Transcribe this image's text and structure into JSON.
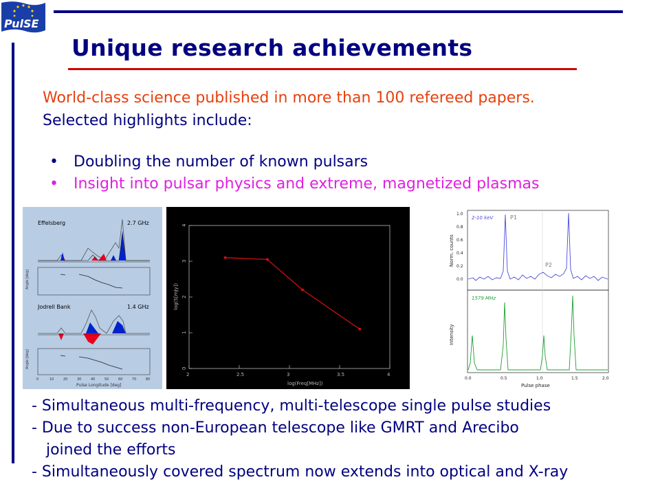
{
  "logo": {
    "text": "PulSE",
    "flag_color": "#1a3ea8",
    "star_color": "#ffd700"
  },
  "title": "Unique research achievements",
  "intro": {
    "line1": "World-class science published in more than 100 refereed papers.",
    "line2": "Selected highlights include:"
  },
  "bullets": [
    {
      "marker": "•",
      "text": "Doubling the number of known pulsars",
      "color": "#000080"
    },
    {
      "marker": "•",
      "text": "Insight into pulsar physics and extreme, magnetized plasmas",
      "color": "#e020e0"
    }
  ],
  "figures": {
    "profiles": {
      "panel1_label": "Effelsberg",
      "panel1_freq": "2.7 GHz",
      "panel2_label": "Jodrell Bank",
      "panel2_freq": "1.4 GHz",
      "angle_label": "Angle [deg]",
      "xlabel": "Pulse Longitude [deg]",
      "xticks": [
        "0",
        "10",
        "20",
        "30",
        "40",
        "50",
        "60",
        "70",
        "80"
      ]
    },
    "spectrum_chart": {
      "chart_data": {
        "type": "line",
        "x": [
          2.36,
          2.78,
          3.13,
          3.7
        ],
        "y": [
          3.1,
          3.05,
          2.2,
          1.1
        ],
        "xlabel": "log(Freq[MHz])",
        "ylabel": "log(S[mJy])",
        "xlim": [
          2,
          4
        ],
        "ylim": [
          0,
          4
        ],
        "xticks": [
          "2",
          "2.5",
          "3",
          "3.5",
          "4"
        ],
        "yticks": [
          "0",
          "1",
          "2",
          "3",
          "4"
        ],
        "line_color": "#cc1010",
        "background": "#000000"
      }
    },
    "phase_plot": {
      "top_band": "2-10 keV",
      "top_p1": "P1",
      "top_p2": "P2",
      "top_ylabel": "Norm. counts",
      "bottom_band": "1579 MHz",
      "bottom_ylabel": "Intensity",
      "xlabel": "Pulse phase",
      "yticks": [
        "0.0",
        "0.2",
        "0.4",
        "0.6",
        "0.8",
        "1.0"
      ],
      "xticks": [
        "0.0",
        "0.5",
        "1.0",
        "1.5",
        "2.0"
      ]
    }
  },
  "bottom_lines": [
    "- Simultaneous multi-frequency, multi-telescope single pulse studies",
    "- Due to success non-European telescope like GMRT and Arecibo",
    "   joined the efforts",
    "- Simultaneously covered spectrum now extends into optical and X-ray"
  ]
}
